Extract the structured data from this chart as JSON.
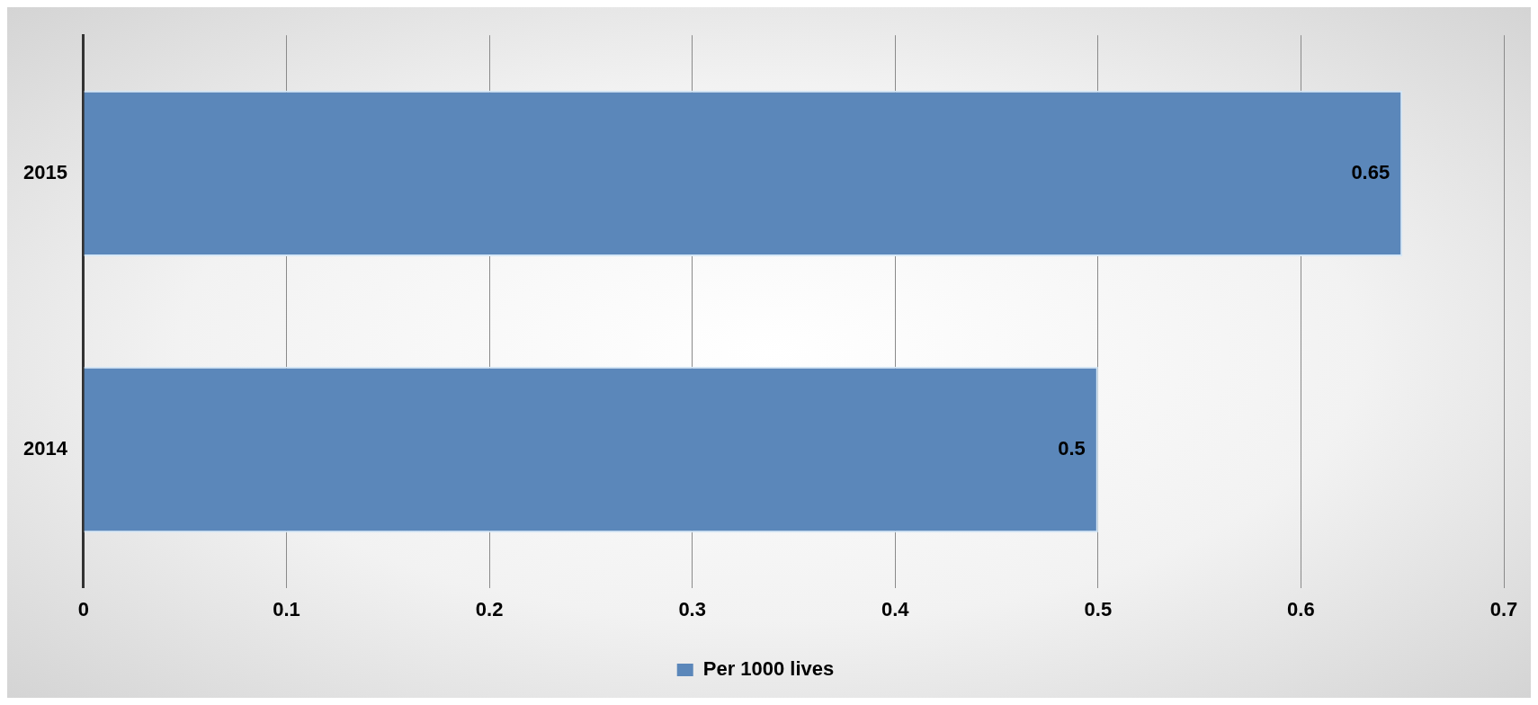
{
  "chart_data": {
    "type": "bar",
    "orientation": "horizontal",
    "categories": [
      "2015",
      "2014"
    ],
    "series": [
      {
        "name": "Per 1000 lives",
        "color": "#5b87ba",
        "values": [
          0.65,
          0.5
        ]
      }
    ],
    "xlim": [
      0,
      0.7
    ],
    "xticks": [
      0,
      0.1,
      0.2,
      0.3,
      0.4,
      0.5,
      0.6,
      0.7
    ],
    "grid": "x",
    "legend": "bottom",
    "data_labels": true
  }
}
